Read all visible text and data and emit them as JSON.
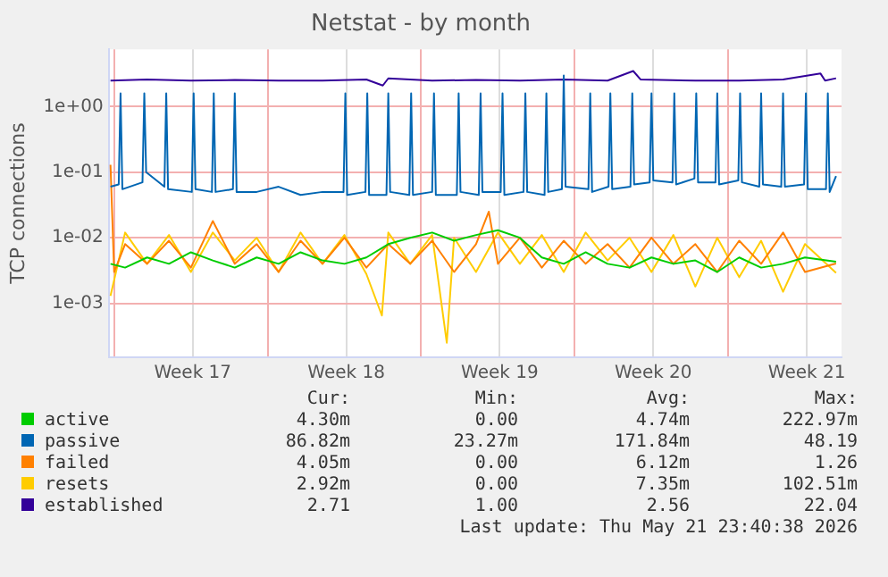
{
  "chart_data": {
    "type": "line",
    "title": "Netstat - by month",
    "ylabel": "TCP connections",
    "log": "y",
    "grid": true,
    "legend": "bottom",
    "marker": "none",
    "line_style": "solid",
    "xlim": [
      "2026-04-18T18:00",
      "2026-05-22T04:00"
    ],
    "xticks": [
      {
        "value": "2026-04-19T00:00",
        "label": null
      },
      {
        "value": "2026-04-22T14:00",
        "label": "Week 17"
      },
      {
        "value": "2026-04-26T00:00",
        "label": null
      },
      {
        "value": "2026-04-29T14:00",
        "label": "Week 18"
      },
      {
        "value": "2026-05-03T00:00",
        "label": null
      },
      {
        "value": "2026-05-06T14:00",
        "label": "Week 19"
      },
      {
        "value": "2026-05-10T00:00",
        "label": null
      },
      {
        "value": "2026-05-13T14:00",
        "label": "Week 20"
      },
      {
        "value": "2026-05-17T00:00",
        "label": null
      },
      {
        "value": "2026-05-20T14:00",
        "label": "Week 21"
      }
    ],
    "ylim": [
      0.00015,
      7.5
    ],
    "yticks": [
      {
        "value": 0.001,
        "label": "1e-03"
      },
      {
        "value": 0.01,
        "label": "1e-02"
      },
      {
        "value": 0.1,
        "label": "1e-01"
      },
      {
        "value": 1,
        "label": "1e+00"
      }
    ],
    "series": [
      {
        "name": "active",
        "color": "#00cc00",
        "x": [
          "2026-04-18T20:00",
          "2026-04-19T12:00",
          "2026-04-20T12:00",
          "2026-04-21T12:00",
          "2026-04-22T12:00",
          "2026-04-23T12:00",
          "2026-04-24T12:00",
          "2026-04-25T12:00",
          "2026-04-26T12:00",
          "2026-04-27T12:00",
          "2026-04-28T12:00",
          "2026-04-29T12:00",
          "2026-04-30T12:00",
          "2026-05-01T12:00",
          "2026-05-02T12:00",
          "2026-05-03T12:00",
          "2026-05-04T12:00",
          "2026-05-05T12:00",
          "2026-05-06T12:00",
          "2026-05-07T12:00",
          "2026-05-08T12:00",
          "2026-05-09T12:00",
          "2026-05-10T12:00",
          "2026-05-11T12:00",
          "2026-05-12T12:00",
          "2026-05-13T12:00",
          "2026-05-14T12:00",
          "2026-05-15T12:00",
          "2026-05-16T12:00",
          "2026-05-17T12:00",
          "2026-05-18T12:00",
          "2026-05-19T12:00",
          "2026-05-20T12:00",
          "2026-05-21T22:00"
        ],
        "values": [
          0.004,
          0.0035,
          0.005,
          0.004,
          0.006,
          0.0045,
          0.0035,
          0.005,
          0.004,
          0.006,
          0.0045,
          0.004,
          0.005,
          0.008,
          0.01,
          0.012,
          0.009,
          0.011,
          0.013,
          0.01,
          0.005,
          0.004,
          0.006,
          0.004,
          0.0035,
          0.005,
          0.004,
          0.0045,
          0.003,
          0.005,
          0.0035,
          0.004,
          0.005,
          0.0043
        ]
      },
      {
        "name": "passive",
        "color": "#0066b3",
        "x": [
          "2026-04-18T20:00",
          "2026-04-19T05:00",
          "2026-04-19T07:00",
          "2026-04-19T09:00",
          "2026-04-20T07:00",
          "2026-04-20T09:00",
          "2026-04-20T11:00",
          "2026-04-21T07:00",
          "2026-04-21T09:00",
          "2026-04-21T11:00",
          "2026-04-22T13:00",
          "2026-04-22T15:00",
          "2026-04-22T17:00",
          "2026-04-23T11:00",
          "2026-04-23T13:00",
          "2026-04-23T15:00",
          "2026-04-24T10:00",
          "2026-04-24T12:00",
          "2026-04-24T14:00",
          "2026-04-25T12:00",
          "2026-04-26T12:00",
          "2026-04-27T12:00",
          "2026-04-28T12:00",
          "2026-04-29T11:00",
          "2026-04-29T13:00",
          "2026-04-29T15:00",
          "2026-04-30T11:00",
          "2026-04-30T13:00",
          "2026-04-30T15:00",
          "2026-05-01T10:00",
          "2026-05-01T12:00",
          "2026-05-01T14:00",
          "2026-05-02T11:00",
          "2026-05-02T13:00",
          "2026-05-02T15:00",
          "2026-05-03T12:00",
          "2026-05-03T14:00",
          "2026-05-03T16:00",
          "2026-05-04T15:00",
          "2026-05-04T17:00",
          "2026-05-04T19:00",
          "2026-05-05T15:00",
          "2026-05-05T17:00",
          "2026-05-05T19:00",
          "2026-05-06T15:00",
          "2026-05-06T17:00",
          "2026-05-06T19:00",
          "2026-05-07T16:00",
          "2026-05-07T18:00",
          "2026-05-07T20:00",
          "2026-05-08T15:00",
          "2026-05-08T17:00",
          "2026-05-08T19:00",
          "2026-05-09T10:00",
          "2026-05-09T12:00",
          "2026-05-09T14:00",
          "2026-05-10T15:00",
          "2026-05-10T17:00",
          "2026-05-10T19:00",
          "2026-05-11T13:00",
          "2026-05-11T15:00",
          "2026-05-11T17:00",
          "2026-05-12T13:00",
          "2026-05-12T15:00",
          "2026-05-12T17:00",
          "2026-05-13T10:00",
          "2026-05-13T12:00",
          "2026-05-13T14:00",
          "2026-05-14T11:00",
          "2026-05-14T13:00",
          "2026-05-14T15:00",
          "2026-05-15T11:00",
          "2026-05-15T13:00",
          "2026-05-15T15:00",
          "2026-05-16T10:00",
          "2026-05-16T12:00",
          "2026-05-16T14:00",
          "2026-05-17T11:00",
          "2026-05-17T13:00",
          "2026-05-17T15:00",
          "2026-05-18T10:00",
          "2026-05-18T12:00",
          "2026-05-18T14:00",
          "2026-05-19T10:00",
          "2026-05-19T12:00",
          "2026-05-19T14:00",
          "2026-05-20T11:00",
          "2026-05-20T13:00",
          "2026-05-20T15:00",
          "2026-05-21T11:00",
          "2026-05-21T13:00",
          "2026-05-21T15:00",
          "2026-05-21T22:00"
        ],
        "values": [
          0.06,
          0.065,
          1.6,
          0.055,
          0.07,
          1.6,
          0.1,
          0.06,
          1.6,
          0.055,
          0.05,
          1.6,
          0.055,
          0.05,
          1.6,
          0.05,
          0.055,
          1.6,
          0.05,
          0.05,
          0.06,
          0.045,
          0.05,
          0.05,
          1.6,
          0.045,
          0.05,
          1.6,
          0.045,
          0.045,
          1.6,
          0.05,
          0.045,
          1.6,
          0.045,
          0.05,
          1.6,
          0.045,
          0.045,
          1.6,
          0.05,
          0.045,
          1.6,
          0.05,
          0.05,
          1.6,
          0.045,
          0.05,
          1.6,
          0.05,
          0.045,
          1.6,
          0.05,
          0.055,
          3.0,
          0.06,
          0.055,
          1.6,
          0.05,
          0.06,
          1.6,
          0.055,
          0.06,
          1.6,
          0.065,
          0.07,
          1.6,
          0.075,
          0.07,
          1.6,
          0.065,
          0.08,
          1.6,
          0.07,
          0.07,
          1.6,
          0.065,
          0.075,
          1.6,
          0.07,
          0.06,
          1.6,
          0.065,
          0.06,
          1.6,
          0.06,
          0.065,
          1.6,
          0.055,
          0.055,
          1.6,
          0.05,
          0.087
        ]
      },
      {
        "name": "failed",
        "color": "#ff8000",
        "x": [
          "2026-04-18T20:00",
          "2026-04-19T00:00",
          "2026-04-19T12:00",
          "2026-04-20T12:00",
          "2026-04-21T12:00",
          "2026-04-22T12:00",
          "2026-04-23T12:00",
          "2026-04-24T12:00",
          "2026-04-25T12:00",
          "2026-04-26T12:00",
          "2026-04-27T12:00",
          "2026-04-28T12:00",
          "2026-04-29T12:00",
          "2026-04-30T12:00",
          "2026-05-01T12:00",
          "2026-05-02T12:00",
          "2026-05-03T12:00",
          "2026-05-04T12:00",
          "2026-05-05T12:00",
          "2026-05-06T02:00",
          "2026-05-06T12:00",
          "2026-05-07T12:00",
          "2026-05-08T12:00",
          "2026-05-09T12:00",
          "2026-05-10T12:00",
          "2026-05-11T12:00",
          "2026-05-12T12:00",
          "2026-05-13T12:00",
          "2026-05-14T12:00",
          "2026-05-15T12:00",
          "2026-05-16T12:00",
          "2026-05-17T12:00",
          "2026-05-18T12:00",
          "2026-05-19T12:00",
          "2026-05-20T12:00",
          "2026-05-21T22:00"
        ],
        "values": [
          0.13,
          0.003,
          0.008,
          0.004,
          0.009,
          0.0035,
          0.018,
          0.004,
          0.008,
          0.003,
          0.009,
          0.004,
          0.01,
          0.0035,
          0.008,
          0.004,
          0.009,
          0.003,
          0.008,
          0.025,
          0.004,
          0.01,
          0.0035,
          0.009,
          0.004,
          0.008,
          0.0035,
          0.01,
          0.004,
          0.008,
          0.003,
          0.009,
          0.004,
          0.012,
          0.003,
          0.00405
        ]
      },
      {
        "name": "resets",
        "color": "#ffcc00",
        "x": [
          "2026-04-18T20:00",
          "2026-04-19T12:00",
          "2026-04-20T12:00",
          "2026-04-21T12:00",
          "2026-04-22T12:00",
          "2026-04-23T12:00",
          "2026-04-24T12:00",
          "2026-04-25T12:00",
          "2026-04-26T12:00",
          "2026-04-27T12:00",
          "2026-04-28T12:00",
          "2026-04-29T12:00",
          "2026-04-30T12:00",
          "2026-05-01T05:00",
          "2026-05-01T12:00",
          "2026-05-02T12:00",
          "2026-05-03T12:00",
          "2026-05-04T04:00",
          "2026-05-04T12:00",
          "2026-05-05T12:00",
          "2026-05-06T12:00",
          "2026-05-07T12:00",
          "2026-05-08T12:00",
          "2026-05-09T12:00",
          "2026-05-10T12:00",
          "2026-05-11T12:00",
          "2026-05-12T12:00",
          "2026-05-13T12:00",
          "2026-05-14T12:00",
          "2026-05-15T12:00",
          "2026-05-16T12:00",
          "2026-05-17T12:00",
          "2026-05-18T12:00",
          "2026-05-19T12:00",
          "2026-05-20T12:00",
          "2026-05-21T22:00"
        ],
        "values": [
          0.0013,
          0.012,
          0.004,
          0.011,
          0.003,
          0.012,
          0.0045,
          0.01,
          0.003,
          0.012,
          0.004,
          0.011,
          0.0028,
          0.00065,
          0.012,
          0.004,
          0.011,
          0.00025,
          0.01,
          0.003,
          0.012,
          0.004,
          0.011,
          0.003,
          0.012,
          0.0045,
          0.01,
          0.003,
          0.011,
          0.0018,
          0.01,
          0.0025,
          0.009,
          0.0015,
          0.008,
          0.00292
        ]
      },
      {
        "name": "established",
        "color": "#330099",
        "x": [
          "2026-04-18T20:00",
          "2026-04-20T12:00",
          "2026-04-22T12:00",
          "2026-04-24T12:00",
          "2026-04-26T12:00",
          "2026-04-28T12:00",
          "2026-04-30T12:00",
          "2026-05-01T06:00",
          "2026-05-01T12:00",
          "2026-05-03T12:00",
          "2026-05-05T12:00",
          "2026-05-07T12:00",
          "2026-05-09T12:00",
          "2026-05-11T12:00",
          "2026-05-12T16:00",
          "2026-05-13T00:00",
          "2026-05-15T12:00",
          "2026-05-17T12:00",
          "2026-05-19T12:00",
          "2026-05-21T05:00",
          "2026-05-21T10:00",
          "2026-05-21T22:00"
        ],
        "values": [
          2.5,
          2.6,
          2.5,
          2.55,
          2.5,
          2.5,
          2.6,
          2.1,
          2.7,
          2.5,
          2.55,
          2.5,
          2.6,
          2.5,
          3.5,
          2.6,
          2.5,
          2.5,
          2.6,
          3.2,
          2.5,
          2.71
        ]
      }
    ],
    "annotations": [
      "Cur:",
      "Min:",
      "Avg:",
      "Max:",
      "4.30m",
      "0.00",
      "4.74m",
      "222.97m",
      "86.82m",
      "23.27m",
      "171.84m",
      "48.19",
      "4.05m",
      "0.00",
      "6.12m",
      "1.26",
      "2.92m",
      "0.00",
      "7.35m",
      "102.51m",
      "2.71",
      "1.00",
      "2.56",
      "22.04",
      "Last update: Thu May 21 23:40:38 2026"
    ]
  }
}
